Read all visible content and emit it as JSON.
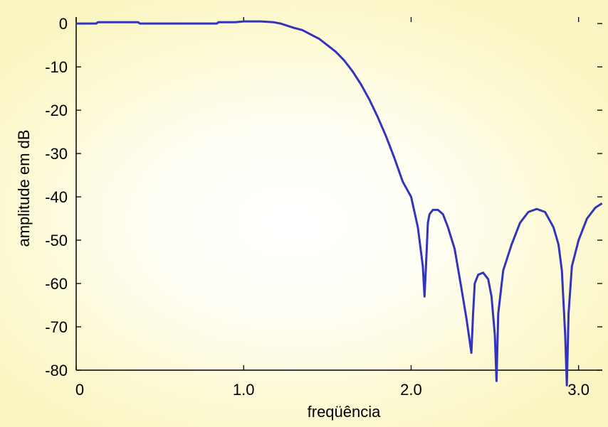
{
  "chart_data": {
    "type": "line",
    "xlabel": "freqüência",
    "ylabel": "amplitude em dB",
    "xlim": [
      0,
      3.1416
    ],
    "ylim": [
      -80,
      1.5
    ],
    "x_ticks": [
      0,
      1.0,
      2.0,
      3.0
    ],
    "x_tick_labels": [
      "0",
      "1.0",
      "2.0",
      "3.0"
    ],
    "y_ticks": [
      0,
      -10,
      -20,
      -30,
      -40,
      -50,
      -60,
      -70,
      -80
    ],
    "y_tick_labels": [
      "0",
      "-10",
      "-20",
      "-30",
      "-40",
      "-50",
      "-60",
      "-70",
      "-80"
    ],
    "grid": false,
    "series": [
      {
        "color": "#3333bb",
        "x": [
          0,
          0.12,
          0.13,
          0.37,
          0.38,
          0.84,
          0.85,
          0.95,
          1.0,
          1.05,
          1.1,
          1.18,
          1.22,
          1.26,
          1.3,
          1.35,
          1.4,
          1.45,
          1.5,
          1.55,
          1.6,
          1.65,
          1.7,
          1.75,
          1.8,
          1.85,
          1.9,
          1.95,
          2.0,
          2.04,
          2.07,
          2.08,
          2.09,
          2.1,
          2.11,
          2.13,
          2.16,
          2.19,
          2.22,
          2.26,
          2.3,
          2.33,
          2.36,
          2.37,
          2.38,
          2.4,
          2.43,
          2.46,
          2.48,
          2.5,
          2.51,
          2.52,
          2.55,
          2.6,
          2.65,
          2.7,
          2.75,
          2.8,
          2.85,
          2.88,
          2.9,
          2.92,
          2.93,
          2.94,
          2.96,
          3.0,
          3.05,
          3.1,
          3.14
        ],
        "y": [
          0,
          0,
          0.3,
          0.3,
          0,
          0,
          0.3,
          0.3,
          0.5,
          0.5,
          0.5,
          0.3,
          0,
          -0.5,
          -1,
          -1.5,
          -2.5,
          -3.5,
          -5,
          -6.5,
          -8.5,
          -11,
          -14,
          -17.5,
          -21.5,
          -26,
          -31,
          -36.5,
          -40,
          -47,
          -56,
          -63,
          -55,
          -46,
          -44,
          -43,
          -43,
          -44,
          -47,
          -52,
          -61,
          -68,
          -76,
          -67,
          -60,
          -58,
          -57.5,
          -59,
          -63,
          -72,
          -82.5,
          -67,
          -57,
          -51,
          -46,
          -43.5,
          -42.8,
          -43.5,
          -47,
          -51,
          -57,
          -72,
          -83.5,
          -67,
          -56,
          -50,
          -45,
          -42.5,
          -41.5
        ]
      }
    ]
  }
}
